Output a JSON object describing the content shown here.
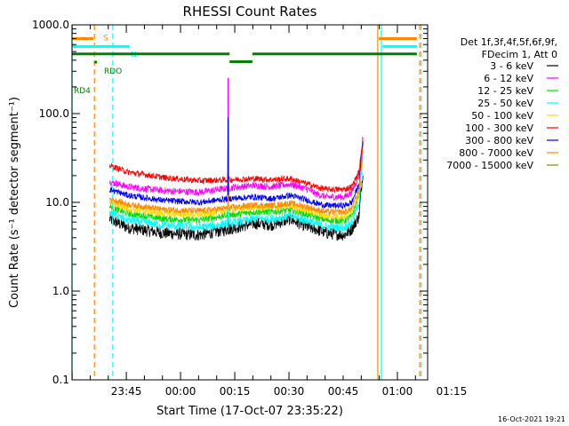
{
  "chart_data": {
    "type": "line",
    "title": "RHESSI Count Rates",
    "xlabel": "Start Time (17-Oct-07 23:35:22)",
    "ylabel": "Count Rate (s⁻¹ detector segment⁻¹)",
    "y_scale": "log",
    "ylim": [
      0.1,
      1000
    ],
    "xlim": [
      -5.4,
      93
    ],
    "x_units": "minutes after 23:35:22",
    "y_ticks": [
      "1000.0",
      "100.0",
      "10.0",
      "1.0",
      "0.1"
    ],
    "x_ticks": [
      {
        "label": "23:45",
        "value": 9.63
      },
      {
        "label": "00:00",
        "value": 24.63
      },
      {
        "label": "00:15",
        "value": 39.63
      },
      {
        "label": "00:30",
        "value": 54.63
      },
      {
        "label": "00:45",
        "value": 69.63
      },
      {
        "label": "01:00",
        "value": 84.63
      },
      {
        "label": "01:15",
        "value": 99.63
      }
    ],
    "timestamp": "16-Oct-2021 19:21",
    "legend": {
      "position": "right",
      "header": [
        "Det 1f,3f,4f,5f,6f,9f,",
        "FDecim 1, Att 0"
      ],
      "entries": [
        {
          "label": "3 - 6 keV",
          "color": "#000000"
        },
        {
          "label": "6 - 12 keV",
          "color": "#ff00ff"
        },
        {
          "label": "12 - 25 keV",
          "color": "#00dd00"
        },
        {
          "label": "25 - 50 keV",
          "color": "#00ffff"
        },
        {
          "label": "50 - 100 keV",
          "color": "#ffd700"
        },
        {
          "label": "100 - 300 keV",
          "color": "#ff0000"
        },
        {
          "label": "300 - 800 keV",
          "color": "#0000ff"
        },
        {
          "label": "800 - 7000 keV",
          "color": "#ff8800"
        },
        {
          "label": "7000 - 15000 keV",
          "color": "#888800"
        }
      ]
    },
    "series": [
      {
        "name": "3 - 6 keV",
        "color": "#000000",
        "noise": 0.07,
        "spike": 20,
        "x": [
          5,
          10,
          20,
          30,
          38,
          45,
          50,
          55,
          60,
          62,
          65,
          70,
          72,
          74,
          75.2
        ],
        "y": [
          6.5,
          5.2,
          4.5,
          4.3,
          5,
          5.8,
          5.6,
          6.5,
          5.2,
          5,
          4.5,
          4.3,
          5,
          7,
          25
        ]
      },
      {
        "name": "6 - 12 keV",
        "color": "#ff00ff",
        "noise": 0.04,
        "spike": 250,
        "x": [
          5,
          10,
          20,
          30,
          38,
          45,
          50,
          55,
          60,
          62,
          65,
          70,
          72,
          74,
          75.2
        ],
        "y": [
          17,
          15,
          13.5,
          13,
          14.5,
          15.5,
          15,
          16,
          14,
          12.5,
          11.5,
          11.5,
          13,
          20,
          60
        ]
      },
      {
        "name": "12 - 25 keV",
        "color": "#00dd00",
        "noise": 0.04,
        "spike": 12,
        "x": [
          5,
          10,
          20,
          30,
          38,
          45,
          50,
          55,
          60,
          62,
          65,
          70,
          72,
          74,
          75.2
        ],
        "y": [
          9,
          7.5,
          6.5,
          6.3,
          7.2,
          7.8,
          7.8,
          8.2,
          7.2,
          6.8,
          6.3,
          6.2,
          7,
          12,
          40
        ]
      },
      {
        "name": "25 - 50 keV",
        "color": "#00ffff",
        "noise": 0.05,
        "spike": 10,
        "x": [
          5,
          10,
          20,
          30,
          38,
          45,
          50,
          55,
          60,
          62,
          65,
          70,
          72,
          74,
          75.2
        ],
        "y": [
          7.5,
          6.3,
          5.5,
          5.2,
          5.8,
          6.5,
          6.5,
          7,
          6.2,
          5.8,
          5.3,
          5.2,
          6,
          10,
          35
        ]
      },
      {
        "name": "50 - 100 keV",
        "color": "#ffd700",
        "noise": 0.04,
        "spike": 11,
        "x": [
          5,
          10,
          20,
          30,
          38,
          45,
          50,
          55,
          60,
          62,
          65,
          70,
          72,
          74,
          75.2
        ],
        "y": [
          10,
          8.5,
          7.5,
          7.2,
          8.2,
          8.8,
          8.8,
          9.2,
          8,
          7.6,
          7,
          7,
          8,
          13,
          42
        ]
      },
      {
        "name": "100 - 300 keV",
        "color": "#ff0000",
        "noise": 0.035,
        "spike": 30,
        "x": [
          5,
          10,
          20,
          30,
          38,
          45,
          50,
          55,
          60,
          62,
          65,
          70,
          72,
          74,
          75.2
        ],
        "y": [
          26,
          22,
          19,
          17.5,
          18,
          18.5,
          18,
          18.5,
          16,
          15,
          14,
          14,
          15,
          22,
          55
        ]
      },
      {
        "name": "300 - 800 keV",
        "color": "#0000ff",
        "noise": 0.035,
        "spike": 90,
        "x": [
          5,
          10,
          20,
          30,
          38,
          45,
          50,
          55,
          60,
          62,
          65,
          70,
          72,
          74,
          75.2
        ],
        "y": [
          14,
          12,
          10.5,
          10,
          11,
          11.5,
          11,
          12,
          10.5,
          9.8,
          9.2,
          9.2,
          10,
          16,
          50
        ]
      },
      {
        "name": "800 - 7000 keV",
        "color": "#ff8800",
        "noise": 0.035,
        "spike": 12,
        "x": [
          5,
          10,
          20,
          30,
          38,
          45,
          50,
          55,
          60,
          62,
          65,
          70,
          72,
          74,
          75.2
        ],
        "y": [
          11,
          9.5,
          8.3,
          8,
          8.7,
          9.3,
          9.2,
          9.8,
          8.8,
          8.3,
          7.8,
          7.8,
          8.5,
          14,
          45
        ]
      }
    ],
    "flag_bars": [
      {
        "label": "S",
        "color": "#ff8800",
        "level": 700,
        "segments": [
          [
            -5.4,
            0.5
          ],
          [
            79.5,
            90
          ]
        ]
      },
      {
        "label": "N",
        "color": "#00ffff",
        "level": 570,
        "segments": [
          [
            -5.4,
            10.5
          ],
          [
            80.5,
            90
          ]
        ]
      },
      {
        "label": "RDO",
        "color": "#008000",
        "level": 470,
        "segments": [
          [
            -5.4,
            38.2
          ],
          [
            44.5,
            90
          ]
        ]
      },
      {
        "label": "",
        "color": "#008000",
        "level": 385,
        "segments": [
          [
            38.2,
            44.5
          ]
        ]
      },
      {
        "label": "RD4",
        "color": "#008000",
        "level": 380,
        "segments": [
          [
            0.8,
            1.5
          ]
        ]
      }
    ],
    "vertical_markers": [
      {
        "x": -5.4,
        "color": "#00ffff",
        "dashed": false
      },
      {
        "x": 0.8,
        "color": "#ff8800",
        "dashed": true
      },
      {
        "x": 5.9,
        "color": "#00ffff",
        "dashed": true
      },
      {
        "x": 79.2,
        "color": "#ff8800",
        "dashed": false
      },
      {
        "x": 80.2,
        "color": "#00ffff",
        "dashed": false
      },
      {
        "x": 90.8,
        "color": "#ff8800",
        "dashed": true
      },
      {
        "x": 91.2,
        "color": "#00ffff",
        "dashed": true
      }
    ]
  }
}
